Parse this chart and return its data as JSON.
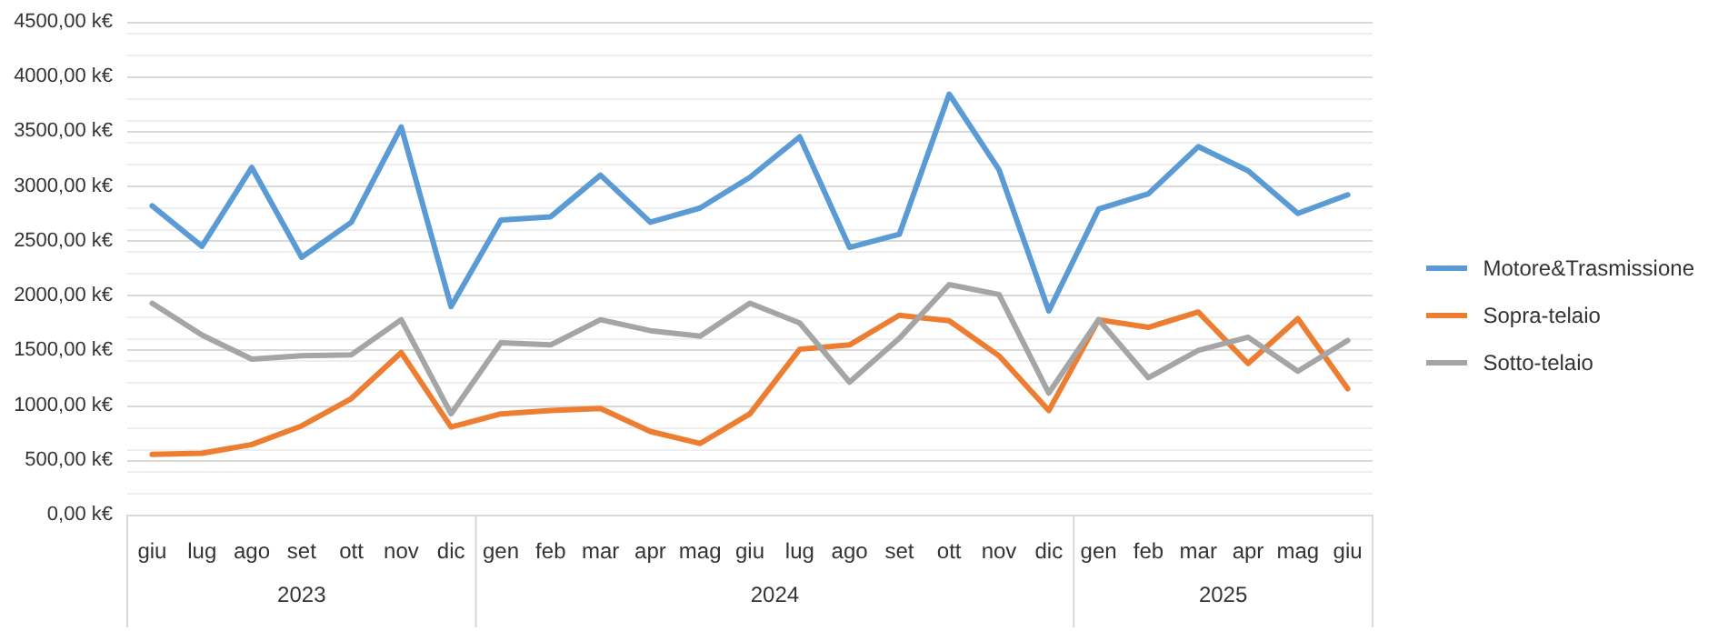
{
  "chart_data": {
    "type": "line",
    "categories": [
      "giu",
      "lug",
      "ago",
      "set",
      "ott",
      "nov",
      "dic",
      "gen",
      "feb",
      "mar",
      "apr",
      "mag",
      "giu",
      "lug",
      "ago",
      "set",
      "ott",
      "nov",
      "dic",
      "gen",
      "feb",
      "mar",
      "apr",
      "mag",
      "giu"
    ],
    "series": [
      {
        "name": "Motore&Trasmissione",
        "color": "#5b9bd5",
        "values": [
          2820,
          2450,
          3170,
          2350,
          2670,
          3540,
          1900,
          2690,
          2720,
          3100,
          2670,
          2800,
          3080,
          3450,
          2440,
          2560,
          3840,
          3150,
          1860,
          2790,
          2930,
          3360,
          3140,
          2750,
          2920
        ]
      },
      {
        "name": "Sopra-telaio",
        "color": "#ed7d31",
        "values": [
          550,
          560,
          640,
          810,
          1060,
          1480,
          800,
          920,
          950,
          970,
          760,
          650,
          920,
          1510,
          1550,
          1820,
          1770,
          1450,
          950,
          1780,
          1710,
          1850,
          1380,
          1790,
          1150
        ]
      },
      {
        "name": "Sotto-telaio",
        "color": "#a5a5a5",
        "values": [
          1930,
          1640,
          1420,
          1450,
          1460,
          1780,
          920,
          1570,
          1550,
          1780,
          1680,
          1630,
          1930,
          1750,
          1210,
          1610,
          2100,
          2010,
          1110,
          1780,
          1250,
          1500,
          1620,
          1310,
          1590
        ]
      }
    ],
    "ylim": [
      0,
      4500
    ],
    "yticks": [
      {
        "value": 0,
        "label": "0,00 k€"
      },
      {
        "value": 500,
        "label": "500,00 k€"
      },
      {
        "value": 1000,
        "label": "1000,00 k€"
      },
      {
        "value": 1500,
        "label": "1500,00 k€"
      },
      {
        "value": 2000,
        "label": "2000,00 k€"
      },
      {
        "value": 2500,
        "label": "2500,00 k€"
      },
      {
        "value": 3000,
        "label": "3000,00 k€"
      },
      {
        "value": 3500,
        "label": "3500,00 k€"
      },
      {
        "value": 4000,
        "label": "4000,00 k€"
      },
      {
        "value": 4500,
        "label": "4500,00 k€"
      }
    ],
    "annotations": [
      "2023",
      "2024",
      "2025"
    ],
    "grid": true,
    "legend": "right",
    "line_style": "solid"
  }
}
